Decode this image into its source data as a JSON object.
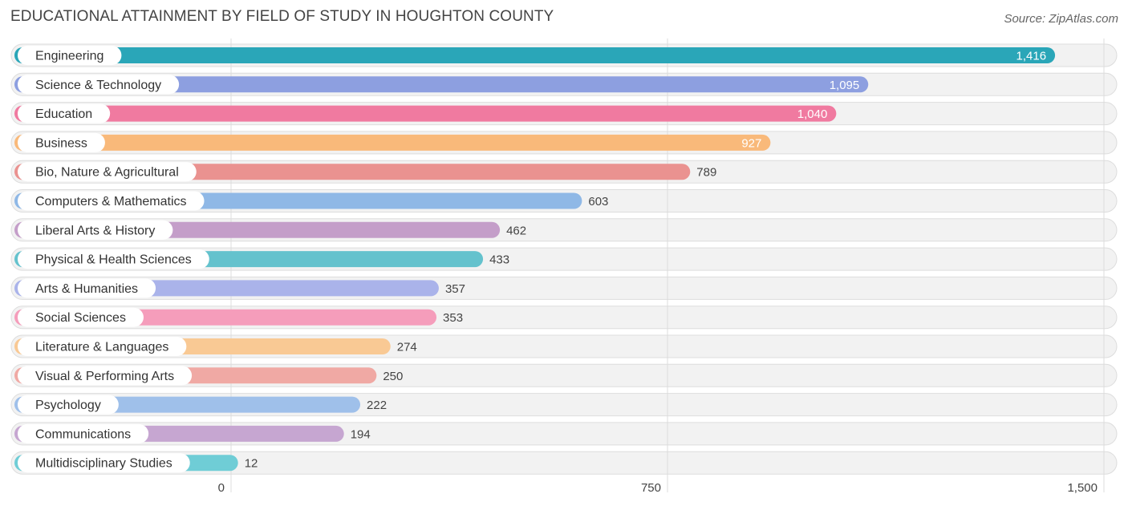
{
  "header": {
    "title": "EDUCATIONAL ATTAINMENT BY FIELD OF STUDY IN HOUGHTON COUNTY",
    "source": "Source: ZipAtlas.com"
  },
  "chart_data": {
    "type": "bar",
    "orientation": "horizontal",
    "title": "EDUCATIONAL ATTAINMENT BY FIELD OF STUDY IN HOUGHTON COUNTY",
    "xlabel": "",
    "ylabel": "",
    "xlim": [
      0,
      1500
    ],
    "grid": true,
    "x_ticks": [
      "0",
      "750",
      "1,500"
    ],
    "x_tick_values": [
      0,
      750,
      1500
    ],
    "categories": [
      "Engineering",
      "Science & Technology",
      "Education",
      "Business",
      "Bio, Nature & Agricultural",
      "Computers & Mathematics",
      "Liberal Arts & History",
      "Physical & Health Sciences",
      "Arts & Humanities",
      "Social Sciences",
      "Literature & Languages",
      "Visual & Performing Arts",
      "Psychology",
      "Communications",
      "Multidisciplinary Studies"
    ],
    "values": [
      1416,
      1095,
      1040,
      927,
      789,
      603,
      462,
      433,
      357,
      353,
      274,
      250,
      222,
      194,
      12
    ],
    "value_labels": [
      "1,416",
      "1,095",
      "1,040",
      "927",
      "789",
      "603",
      "462",
      "433",
      "357",
      "353",
      "274",
      "250",
      "222",
      "194",
      "12"
    ],
    "colors": [
      "#2aa6b8",
      "#8d9fe0",
      "#f07aa0",
      "#f9b97a",
      "#ea9290",
      "#8fb8e6",
      "#c49ec9",
      "#64c2cd",
      "#aab3ea",
      "#f59dbb",
      "#f9c994",
      "#f0a9a4",
      "#9fc0ea",
      "#c6a6d1",
      "#6fcdd6"
    ]
  }
}
